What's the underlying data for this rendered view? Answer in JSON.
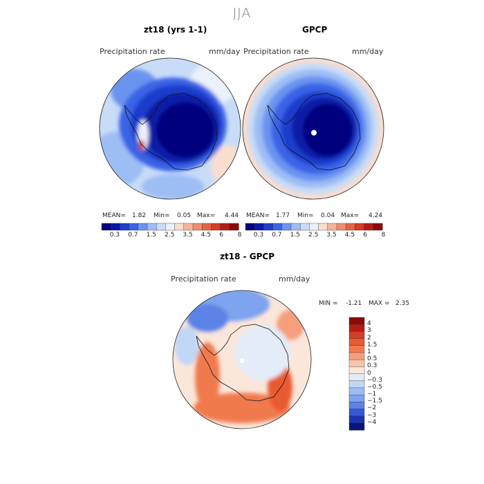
{
  "page_title": "JJA",
  "chart_data": [
    {
      "type": "heatmap",
      "title": "zt18 (yrs 1-1)",
      "variable_label": "Precipitation rate",
      "units": "mm/day",
      "stats": {
        "mean_label": "MEAN=",
        "mean": "1.82",
        "min_label": "Min=",
        "min": "0.05",
        "max_label": "Max=",
        "max": "4.44"
      },
      "colorbar": {
        "orientation": "horizontal",
        "tick_labels": [
          "0.3",
          "0.7",
          "1.5",
          "2.5",
          "3.5",
          "4.5",
          "6",
          "8"
        ],
        "colors": [
          "#00007f",
          "#0a1aa6",
          "#1f3ecc",
          "#3b64e6",
          "#6a93f0",
          "#9dbdf5",
          "#c8dcf7",
          "#eaf1fa",
          "#f9ddcf",
          "#f4b39a",
          "#ee8c6c",
          "#e56447",
          "#d43d26",
          "#b51d14",
          "#8b0a0a"
        ]
      }
    },
    {
      "type": "heatmap",
      "title": "GPCP",
      "variable_label": "Precipitation rate",
      "units": "mm/day",
      "stats": {
        "mean_label": "MEAN=",
        "mean": "1.77",
        "min_label": "Min=",
        "min": "0.04",
        "max_label": "Max=",
        "max": "4.24"
      },
      "colorbar": {
        "orientation": "horizontal",
        "tick_labels": [
          "0.3",
          "0.7",
          "1.5",
          "2.5",
          "3.5",
          "4.5",
          "6",
          "8"
        ],
        "colors": [
          "#00007f",
          "#0a1aa6",
          "#1f3ecc",
          "#3b64e6",
          "#6a93f0",
          "#9dbdf5",
          "#c8dcf7",
          "#eaf1fa",
          "#f9ddcf",
          "#f4b39a",
          "#ee8c6c",
          "#e56447",
          "#d43d26",
          "#b51d14",
          "#8b0a0a"
        ]
      }
    },
    {
      "type": "heatmap",
      "title": "zt18 - GPCP",
      "variable_label": "Precipitation rate",
      "units": "mm/day",
      "stats": {
        "min_label": "MIN =",
        "min": "-1.21",
        "max_label": "MAX =",
        "max": "2.35"
      },
      "colorbar": {
        "orientation": "vertical",
        "tick_labels": [
          "4",
          "3",
          "2",
          "1.5",
          "1",
          "0.5",
          "0.3",
          "0",
          "−0.3",
          "−0.5",
          "−1",
          "−1.5",
          "−2",
          "−3",
          "−4"
        ],
        "colors": [
          "#8b0a0a",
          "#b51d14",
          "#d43d26",
          "#e85a33",
          "#f07a4e",
          "#f49e7d",
          "#f8c4ac",
          "#fbe6da",
          "#e3ecf8",
          "#c2d6f5",
          "#9dbdf5",
          "#7ea3ef",
          "#5c82e6",
          "#3558d4",
          "#1a34b3",
          "#07147f"
        ]
      }
    }
  ]
}
